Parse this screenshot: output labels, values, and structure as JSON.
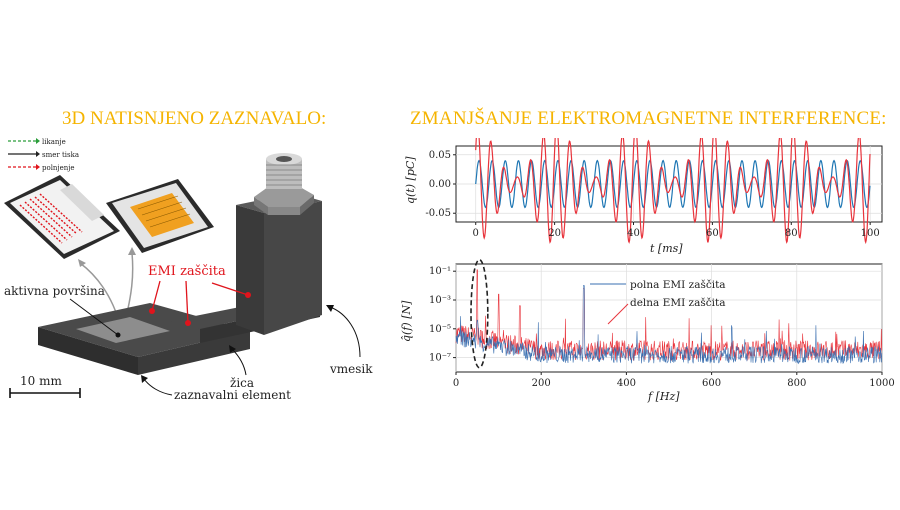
{
  "left_panel": {
    "title": "3D NATISNJENO ZAZNAVALO:",
    "legend": {
      "likanje": "likanje",
      "smer_tiska": "smer tiska",
      "polnjenje": "polnjenje"
    },
    "labels": {
      "aktivna": "aktivna površina",
      "emi": "EMI zaščita",
      "zica": "žica",
      "vmesnik": "vmesik",
      "zaznavalni": "zaznavalni element",
      "scale": "10 mm"
    },
    "colors": {
      "title": "#f5b400",
      "red": "#e0141c",
      "green": "#2a9d3a",
      "pad": "#f0a020"
    }
  },
  "right_panel": {
    "title": "ZMANJŠANJE ELEKTROMAGNETNE INTERFERENCE:",
    "annotations": {
      "polna": "polna EMI zaščita",
      "delna": "delna EMI zaščita"
    }
  },
  "chart_data": [
    {
      "type": "line",
      "xlabel": "t [ms]",
      "ylabel": "q(t) [pC]",
      "xlim": [
        -5,
        103
      ],
      "ylim": [
        -0.065,
        0.065
      ],
      "x_ticks": [
        "0",
        "20",
        "40",
        "60",
        "80",
        "100"
      ],
      "x_tick_values": [
        0,
        20,
        40,
        60,
        80,
        100
      ],
      "y_ticks": [
        "0.05",
        "0.00",
        "-0.05"
      ],
      "y_tick_values": [
        0.05,
        0.0,
        -0.05
      ],
      "grid": true,
      "series": [
        {
          "color": "#1f77b4",
          "frequency_hz": 300,
          "amplitude": 0.04
        },
        {
          "color": "#e8343c",
          "frequency_hz": 300,
          "amplitude": 0.03,
          "modulation_hz": 50,
          "peak": 0.057
        }
      ]
    },
    {
      "type": "line",
      "xlabel": "f [Hz]",
      "ylabel": "q̂(f) [N]",
      "xlim": [
        0,
        1000
      ],
      "ylim_log10": [
        -8,
        -0.5
      ],
      "x_ticks": [
        "0",
        "200",
        "400",
        "600",
        "800",
        "1000"
      ],
      "x_tick_values": [
        0,
        200,
        400,
        600,
        800,
        1000
      ],
      "y_ticks": [
        "10⁻¹",
        "10⁻³",
        "10⁻⁵",
        "10⁻⁷"
      ],
      "y_tick_values_log10": [
        -1,
        -3,
        -5,
        -7
      ],
      "grid": true,
      "peaks_hz": [
        50,
        300
      ],
      "highlight_region_hz": [
        40,
        70
      ],
      "series": [
        {
          "color": "#e8343c",
          "baseline_log10": -6.5
        },
        {
          "color": "#3a6fb0",
          "baseline_log10": -6.8
        }
      ]
    }
  ]
}
